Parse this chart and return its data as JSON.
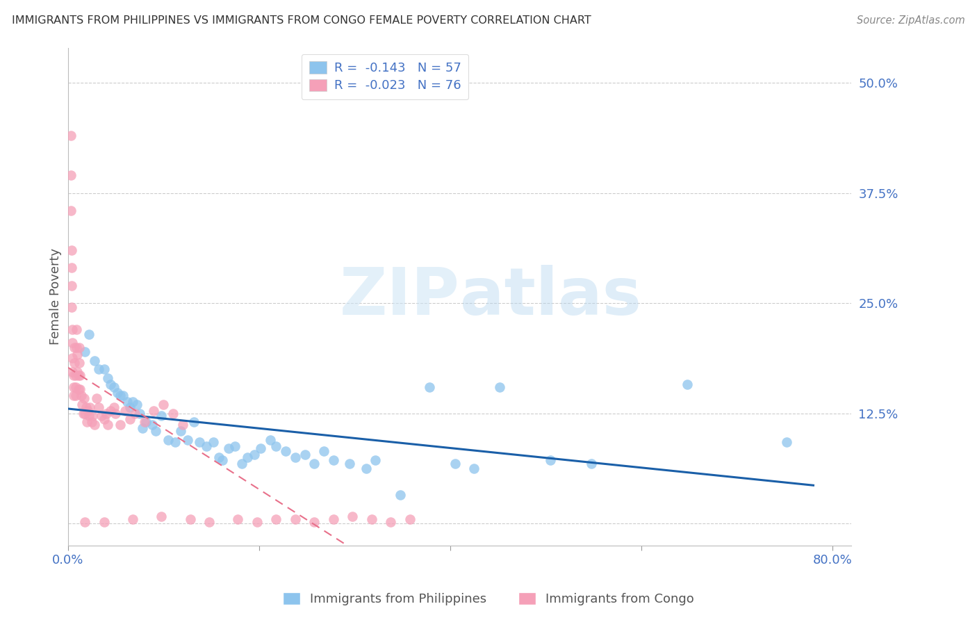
{
  "title": "IMMIGRANTS FROM PHILIPPINES VS IMMIGRANTS FROM CONGO FEMALE POVERTY CORRELATION CHART",
  "source": "Source: ZipAtlas.com",
  "ylabel": "Female Poverty",
  "right_ytick_vals": [
    0.0,
    0.125,
    0.25,
    0.375,
    0.5
  ],
  "right_ytick_labels": [
    "",
    "12.5%",
    "25.0%",
    "37.5%",
    "50.0%"
  ],
  "watermark_zip": "ZIP",
  "watermark_atlas": "atlas",
  "legend_R1": "-0.143",
  "legend_N1": "57",
  "legend_R2": "-0.023",
  "legend_N2": "76",
  "legend_label1": "Immigrants from Philippines",
  "legend_label2": "Immigrants from Congo",
  "philippines_color": "#8dc4ed",
  "congo_color": "#f5a0b8",
  "philippines_trend_color": "#1a5fa8",
  "congo_trend_color": "#e8708a",
  "xlim": [
    0.0,
    0.82
  ],
  "ylim": [
    -0.025,
    0.54
  ],
  "philippines_x": [
    0.018,
    0.022,
    0.028,
    0.032,
    0.038,
    0.042,
    0.045,
    0.048,
    0.052,
    0.055,
    0.058,
    0.062,
    0.065,
    0.068,
    0.072,
    0.075,
    0.078,
    0.082,
    0.088,
    0.092,
    0.098,
    0.105,
    0.112,
    0.118,
    0.125,
    0.132,
    0.138,
    0.145,
    0.152,
    0.158,
    0.162,
    0.168,
    0.175,
    0.182,
    0.188,
    0.195,
    0.202,
    0.212,
    0.218,
    0.228,
    0.238,
    0.248,
    0.258,
    0.268,
    0.278,
    0.295,
    0.312,
    0.322,
    0.348,
    0.378,
    0.405,
    0.425,
    0.452,
    0.505,
    0.548,
    0.648,
    0.752
  ],
  "philippines_y": [
    0.195,
    0.215,
    0.185,
    0.175,
    0.175,
    0.165,
    0.158,
    0.155,
    0.148,
    0.145,
    0.145,
    0.138,
    0.132,
    0.138,
    0.135,
    0.125,
    0.108,
    0.115,
    0.112,
    0.105,
    0.122,
    0.095,
    0.092,
    0.105,
    0.095,
    0.115,
    0.092,
    0.088,
    0.092,
    0.075,
    0.072,
    0.085,
    0.088,
    0.068,
    0.075,
    0.078,
    0.085,
    0.095,
    0.088,
    0.082,
    0.075,
    0.078,
    0.068,
    0.082,
    0.072,
    0.068,
    0.062,
    0.072,
    0.032,
    0.155,
    0.068,
    0.062,
    0.155,
    0.072,
    0.068,
    0.158,
    0.092
  ],
  "congo_x": [
    0.003,
    0.003,
    0.003,
    0.004,
    0.004,
    0.004,
    0.004,
    0.005,
    0.005,
    0.005,
    0.005,
    0.006,
    0.006,
    0.006,
    0.007,
    0.007,
    0.008,
    0.008,
    0.008,
    0.009,
    0.009,
    0.01,
    0.01,
    0.011,
    0.011,
    0.012,
    0.012,
    0.013,
    0.013,
    0.014,
    0.015,
    0.016,
    0.017,
    0.018,
    0.019,
    0.02,
    0.021,
    0.022,
    0.023,
    0.025,
    0.026,
    0.028,
    0.03,
    0.032,
    0.035,
    0.038,
    0.04,
    0.042,
    0.045,
    0.048,
    0.05,
    0.055,
    0.06,
    0.065,
    0.07,
    0.08,
    0.09,
    0.1,
    0.11,
    0.12,
    0.018,
    0.038,
    0.068,
    0.098,
    0.128,
    0.148,
    0.178,
    0.198,
    0.218,
    0.238,
    0.258,
    0.278,
    0.298,
    0.318,
    0.338,
    0.358
  ],
  "congo_y": [
    0.44,
    0.395,
    0.355,
    0.31,
    0.29,
    0.27,
    0.245,
    0.22,
    0.205,
    0.188,
    0.172,
    0.168,
    0.155,
    0.145,
    0.2,
    0.182,
    0.168,
    0.155,
    0.145,
    0.22,
    0.2,
    0.192,
    0.172,
    0.168,
    0.152,
    0.2,
    0.182,
    0.168,
    0.152,
    0.145,
    0.135,
    0.125,
    0.142,
    0.125,
    0.132,
    0.115,
    0.128,
    0.122,
    0.132,
    0.115,
    0.122,
    0.112,
    0.142,
    0.132,
    0.122,
    0.118,
    0.125,
    0.112,
    0.128,
    0.132,
    0.125,
    0.112,
    0.128,
    0.118,
    0.125,
    0.115,
    0.128,
    0.135,
    0.125,
    0.112,
    0.002,
    0.002,
    0.005,
    0.008,
    0.005,
    0.002,
    0.005,
    0.002,
    0.005,
    0.005,
    0.002,
    0.005,
    0.008,
    0.005,
    0.002,
    0.005
  ]
}
